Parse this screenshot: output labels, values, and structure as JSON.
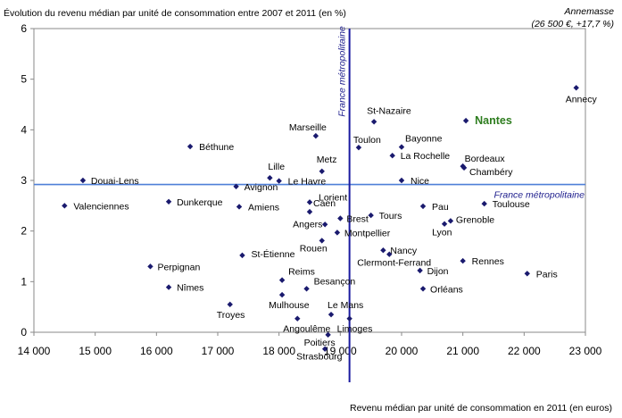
{
  "chart_data": {
    "type": "scatter",
    "title": "",
    "ylabel": "Évolution du revenu médian par unité de consommation entre 2007 et 2011 (en %)",
    "xlabel": "Revenu médian par unité de consommation en 2011 (en euros)",
    "xlim": [
      14000,
      23000
    ],
    "ylim": [
      0,
      6
    ],
    "x_ticks": [
      14000,
      15000,
      16000,
      17000,
      18000,
      19000,
      20000,
      21000,
      22000,
      23000
    ],
    "x_tick_labels": [
      "14 000",
      "15 000",
      "16 000",
      "17 000",
      "18 000",
      "19 000",
      "20 000",
      "21 000",
      "22 000",
      "23 000"
    ],
    "y_ticks": [
      0,
      1,
      2,
      3,
      4,
      5,
      6
    ],
    "y_tick_labels": [
      "0",
      "1",
      "2",
      "3",
      "4",
      "5",
      "6"
    ],
    "grid": false,
    "marker_color": "#1a1a6e",
    "reference_color": "#1c1c8c",
    "reference_lines": {
      "x": 19150,
      "y": 2.92,
      "x_label": "France métropolitaine",
      "y_label": "France métropolitaine",
      "vertical_color": "#1a1aa0",
      "horizontal_color": "#4f7fd8"
    },
    "highlight": {
      "name": "Nantes",
      "color": "#2e7d1f"
    },
    "annotation": {
      "line1": "Annemasse",
      "line2": "(26 500 €, +17,7 %)"
    },
    "points": [
      {
        "name": "Annecy",
        "x": 22850,
        "y": 4.83
      },
      {
        "name": "Nantes",
        "x": 21050,
        "y": 4.18
      },
      {
        "name": "St-Nazaire",
        "x": 19550,
        "y": 4.16
      },
      {
        "name": "Marseille",
        "x": 18600,
        "y": 3.88
      },
      {
        "name": "Béthune",
        "x": 16550,
        "y": 3.67
      },
      {
        "name": "Toulon",
        "x": 19300,
        "y": 3.65
      },
      {
        "name": "Bayonne",
        "x": 20000,
        "y": 3.66
      },
      {
        "name": "La Rochelle",
        "x": 19850,
        "y": 3.49
      },
      {
        "name": "Metz",
        "x": 18700,
        "y": 3.18
      },
      {
        "name": "Bordeaux",
        "x": 21000,
        "y": 3.28
      },
      {
        "name": "Chambéry",
        "x": 21020,
        "y": 3.25
      },
      {
        "name": "Lille",
        "x": 17850,
        "y": 3.05
      },
      {
        "name": "Le Havre",
        "x": 18000,
        "y": 2.99
      },
      {
        "name": "Douai-Lens",
        "x": 14800,
        "y": 3.0
      },
      {
        "name": "Nice",
        "x": 20000,
        "y": 3.0
      },
      {
        "name": "Avignon",
        "x": 17300,
        "y": 2.88
      },
      {
        "name": "Lorient",
        "x": 18500,
        "y": 2.57
      },
      {
        "name": "Dunkerque",
        "x": 16200,
        "y": 2.58
      },
      {
        "name": "Toulouse",
        "x": 21350,
        "y": 2.54
      },
      {
        "name": "Valenciennes",
        "x": 14500,
        "y": 2.5
      },
      {
        "name": "Pau",
        "x": 20350,
        "y": 2.49
      },
      {
        "name": "Amiens",
        "x": 17350,
        "y": 2.48
      },
      {
        "name": "Caen",
        "x": 18500,
        "y": 2.38
      },
      {
        "name": "Tours",
        "x": 19500,
        "y": 2.31
      },
      {
        "name": "Brest",
        "x": 19000,
        "y": 2.25
      },
      {
        "name": "Grenoble",
        "x": 20800,
        "y": 2.2
      },
      {
        "name": "Lyon",
        "x": 20700,
        "y": 2.14
      },
      {
        "name": "Angers",
        "x": 18750,
        "y": 2.13
      },
      {
        "name": "Montpellier",
        "x": 18950,
        "y": 1.97
      },
      {
        "name": "Rouen",
        "x": 18700,
        "y": 1.81
      },
      {
        "name": "Nancy",
        "x": 19700,
        "y": 1.62
      },
      {
        "name": "Clermont-Ferrand",
        "x": 19800,
        "y": 1.54
      },
      {
        "name": "St-Étienne",
        "x": 17400,
        "y": 1.52
      },
      {
        "name": "Rennes",
        "x": 21000,
        "y": 1.41
      },
      {
        "name": "Perpignan",
        "x": 15900,
        "y": 1.3
      },
      {
        "name": "Dijon",
        "x": 20300,
        "y": 1.22
      },
      {
        "name": "Paris",
        "x": 22050,
        "y": 1.16
      },
      {
        "name": "Reims",
        "x": 18050,
        "y": 1.03
      },
      {
        "name": "Nîmes",
        "x": 16200,
        "y": 0.89
      },
      {
        "name": "Besançon",
        "x": 18450,
        "y": 0.86
      },
      {
        "name": "Orléans",
        "x": 20350,
        "y": 0.86
      },
      {
        "name": "Mulhouse",
        "x": 18050,
        "y": 0.74
      },
      {
        "name": "Troyes",
        "x": 17200,
        "y": 0.55
      },
      {
        "name": "Le Mans",
        "x": 18850,
        "y": 0.35
      },
      {
        "name": "Angoulême",
        "x": 18300,
        "y": 0.27
      },
      {
        "name": "Limoges",
        "x": 19150,
        "y": 0.27
      },
      {
        "name": "Poitiers",
        "x": 18800,
        "y": -0.05
      },
      {
        "name": "Strasbourg",
        "x": 18750,
        "y": -0.33
      }
    ]
  }
}
